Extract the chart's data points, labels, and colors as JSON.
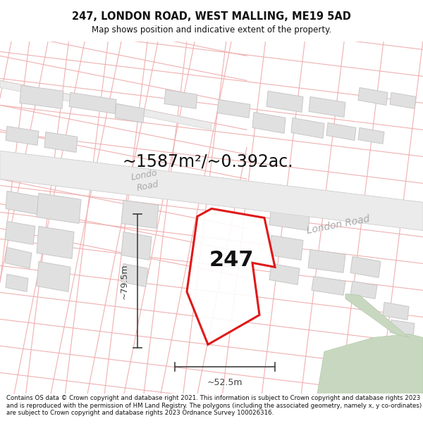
{
  "title": "247, LONDON ROAD, WEST MALLING, ME19 5AD",
  "subtitle": "Map shows position and indicative extent of the property.",
  "area_text": "~1587m²/~0.392ac.",
  "label_247": "247",
  "dim_width": "~52.5m",
  "dim_height": "~79.5m",
  "road_label_upper": "Londo\nRoad",
  "road_label_lower": "London Road",
  "footer": "Contains OS data © Crown copyright and database right 2021. This information is subject to Crown copyright and database rights 2023 and is reproduced with the permission of HM Land Registry. The polygons (including the associated geometry, namely x, y co-ordinates) are subject to Crown copyright and database rights 2023 Ordnance Survey 100026316.",
  "bg_color": "#ffffff",
  "map_bg": "#f9f9f9",
  "plot_outline_color": "#dd0000",
  "cadastral_color": "#f0b0b0",
  "building_fill": "#e0e0e0",
  "building_edge": "#c8c8c8",
  "road_fill": "#ebebeb",
  "road_edge": "#d0d0d0",
  "road_label_color": "#aaaaaa",
  "dim_line_color": "#404040",
  "text_color": "#111111",
  "green_fill": "#c8d8c0",
  "green_edge": "#b0c8a8",
  "title_fontsize": 10.5,
  "subtitle_fontsize": 8.5,
  "area_fontsize": 17,
  "label_fontsize": 22,
  "dim_fontsize": 9,
  "road_fontsize": 10,
  "footer_fontsize": 6.2
}
